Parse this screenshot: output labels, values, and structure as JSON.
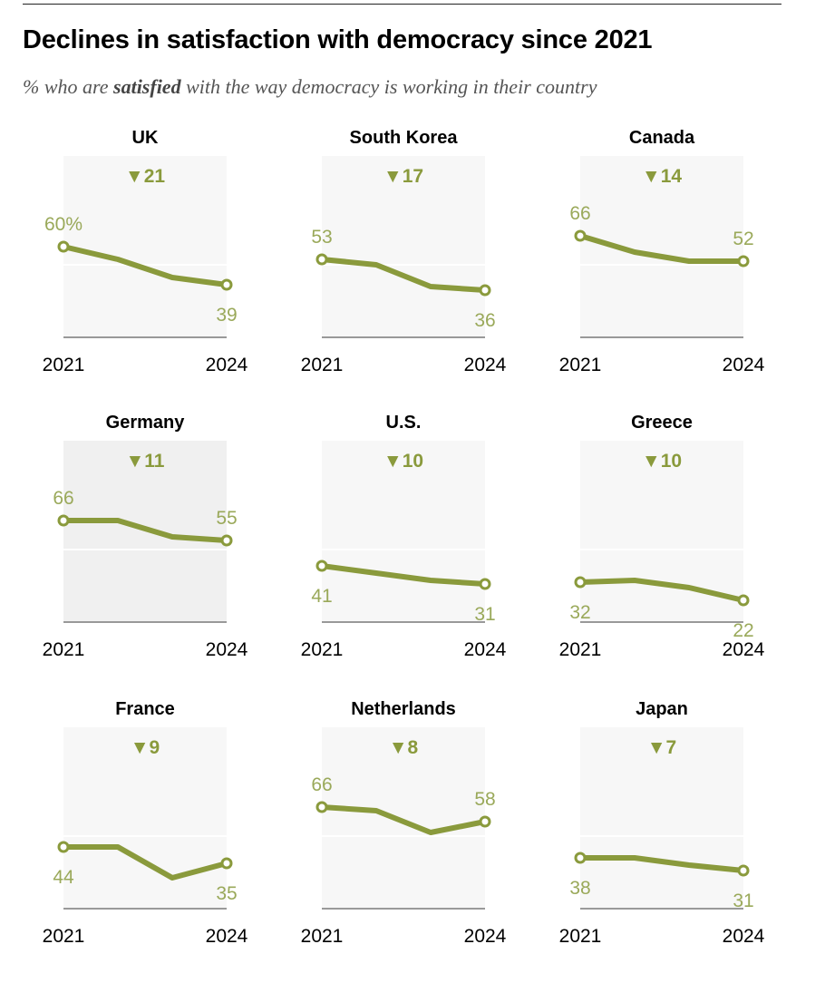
{
  "title": "Declines in satisfaction with democracy since 2021",
  "subtitle": {
    "before": "% who are ",
    "emphasis": "satisfied",
    "after": " with the way democracy is working in their country"
  },
  "colors": {
    "line": "#8a9a3c",
    "label": "#9aa95a",
    "panel": "#f7f7f7",
    "panel_highlight": "#f0f0f0",
    "axis": "#999999"
  },
  "chart_data": [
    {
      "type": "line",
      "title": "UK",
      "decline": "▼21",
      "x": [
        "2021",
        "2022",
        "2023",
        "2024"
      ],
      "values": [
        60,
        53,
        43,
        39
      ],
      "start_label": "60%",
      "end_label": "39",
      "start_label_pos": "above",
      "end_label_pos": "below",
      "xlabel_start": "2021",
      "xlabel_end": "2024",
      "ylim": [
        0,
        100
      ],
      "highlight": false
    },
    {
      "type": "line",
      "title": "South Korea",
      "decline": "▼17",
      "x": [
        "2021",
        "2022",
        "2023",
        "2024"
      ],
      "values": [
        53,
        50,
        38,
        36
      ],
      "start_label": "53",
      "end_label": "36",
      "start_label_pos": "above",
      "end_label_pos": "below",
      "xlabel_start": "2021",
      "xlabel_end": "2024",
      "ylim": [
        0,
        100
      ],
      "highlight": false
    },
    {
      "type": "line",
      "title": "Canada",
      "decline": "▼14",
      "x": [
        "2021",
        "2022",
        "2023",
        "2024"
      ],
      "values": [
        66,
        57,
        52,
        52
      ],
      "start_label": "66",
      "end_label": "52",
      "start_label_pos": "above",
      "end_label_pos": "above",
      "xlabel_start": "2021",
      "xlabel_end": "2024",
      "ylim": [
        0,
        100
      ],
      "highlight": false
    },
    {
      "type": "line",
      "title": "Germany",
      "decline": "▼11",
      "x": [
        "2021",
        "2022",
        "2023",
        "2024"
      ],
      "values": [
        66,
        66,
        57,
        55
      ],
      "start_label": "66",
      "end_label": "55",
      "start_label_pos": "above",
      "end_label_pos": "above",
      "xlabel_start": "2021",
      "xlabel_end": "2024",
      "ylim": [
        0,
        100
      ],
      "highlight": true
    },
    {
      "type": "line",
      "title": "U.S.",
      "decline": "▼10",
      "x": [
        "2021",
        "2022",
        "2023",
        "2024"
      ],
      "values": [
        41,
        37,
        33,
        31
      ],
      "start_label": "41",
      "end_label": "31",
      "start_label_pos": "below",
      "end_label_pos": "below",
      "xlabel_start": "2021",
      "xlabel_end": "2024",
      "ylim": [
        0,
        100
      ],
      "highlight": false
    },
    {
      "type": "line",
      "title": "Greece",
      "decline": "▼10",
      "x": [
        "2021",
        "2022",
        "2023",
        "2024"
      ],
      "values": [
        32,
        33,
        29,
        22
      ],
      "start_label": "32",
      "end_label": "22",
      "start_label_pos": "below",
      "end_label_pos": "below",
      "xlabel_start": "2021",
      "xlabel_end": "2024",
      "ylim": [
        0,
        100
      ],
      "highlight": false
    },
    {
      "type": "line",
      "title": "France",
      "decline": "▼9",
      "x": [
        "2021",
        "2022",
        "2023",
        "2024"
      ],
      "values": [
        44,
        44,
        27,
        35
      ],
      "start_label": "44",
      "end_label": "35",
      "start_label_pos": "below",
      "end_label_pos": "below",
      "xlabel_start": "2021",
      "xlabel_end": "2024",
      "ylim": [
        0,
        100
      ],
      "highlight": false
    },
    {
      "type": "line",
      "title": "Netherlands",
      "decline": "▼8",
      "x": [
        "2021",
        "2022",
        "2023",
        "2024"
      ],
      "values": [
        66,
        64,
        52,
        58
      ],
      "start_label": "66",
      "end_label": "58",
      "start_label_pos": "above",
      "end_label_pos": "above",
      "xlabel_start": "2021",
      "xlabel_end": "2024",
      "ylim": [
        0,
        100
      ],
      "highlight": false
    },
    {
      "type": "line",
      "title": "Japan",
      "decline": "▼7",
      "x": [
        "2021",
        "2022",
        "2023",
        "2024"
      ],
      "values": [
        38,
        38,
        34,
        31
      ],
      "start_label": "38",
      "end_label": "31",
      "start_label_pos": "below",
      "end_label_pos": "below",
      "xlabel_start": "2021",
      "xlabel_end": "2024",
      "ylim": [
        0,
        100
      ],
      "highlight": false
    }
  ]
}
